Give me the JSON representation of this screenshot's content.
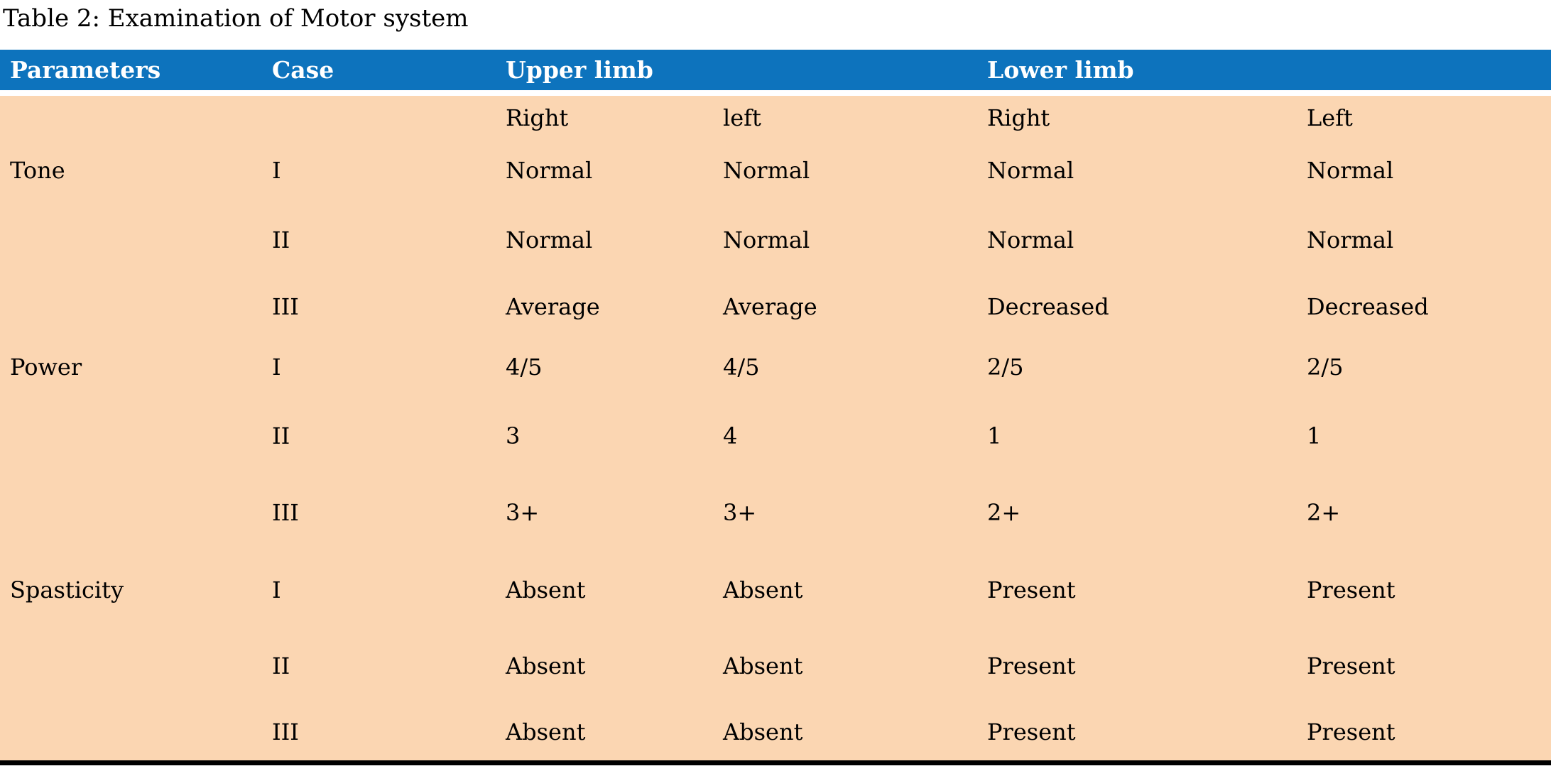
{
  "colors": {
    "header_bg": "#0d73bd",
    "header_text": "#ffffff",
    "body_bg": "#fbd6b2",
    "border_bottom": "#000000"
  },
  "table": {
    "caption": "Table 2: Examination of Motor system",
    "columns": [
      "Parameters",
      "Case",
      "Upper limb",
      "Lower limb"
    ],
    "subcolumns": [
      "Right",
      "left",
      "Right",
      "Left"
    ],
    "rows": [
      {
        "parameter": "Tone",
        "case": "I",
        "upper_right": "Normal",
        "upper_left": "Normal",
        "lower_right": "Normal",
        "lower_left": "Normal"
      },
      {
        "parameter": "",
        "case": "II",
        "upper_right": "Normal",
        "upper_left": "Normal",
        "lower_right": "Normal",
        "lower_left": "Normal"
      },
      {
        "parameter": "",
        "case": "III",
        "upper_right": "Average",
        "upper_left": "Average",
        "lower_right": "Decreased",
        "lower_left": "Decreased"
      },
      {
        "parameter": "Power",
        "case": "I",
        "upper_right": "4/5",
        "upper_left": "4/5",
        "lower_right": "2/5",
        "lower_left": "2/5"
      },
      {
        "parameter": "",
        "case": "II",
        "upper_right": "3",
        "upper_left": "4",
        "lower_right": "1",
        "lower_left": "1"
      },
      {
        "parameter": "",
        "case": "III",
        "upper_right": "3+",
        "upper_left": "3+",
        "lower_right": "2+",
        "lower_left": "2+"
      },
      {
        "parameter": "Spasticity",
        "case": "I",
        "upper_right": "Absent",
        "upper_left": "Absent",
        "lower_right": "Present",
        "lower_left": "Present"
      },
      {
        "parameter": "",
        "case": "II",
        "upper_right": "Absent",
        "upper_left": "Absent",
        "lower_right": "Present",
        "lower_left": "Present"
      },
      {
        "parameter": "",
        "case": "III",
        "upper_right": "Absent",
        "upper_left": "Absent",
        "lower_right": "Present",
        "lower_left": "Present"
      }
    ]
  }
}
